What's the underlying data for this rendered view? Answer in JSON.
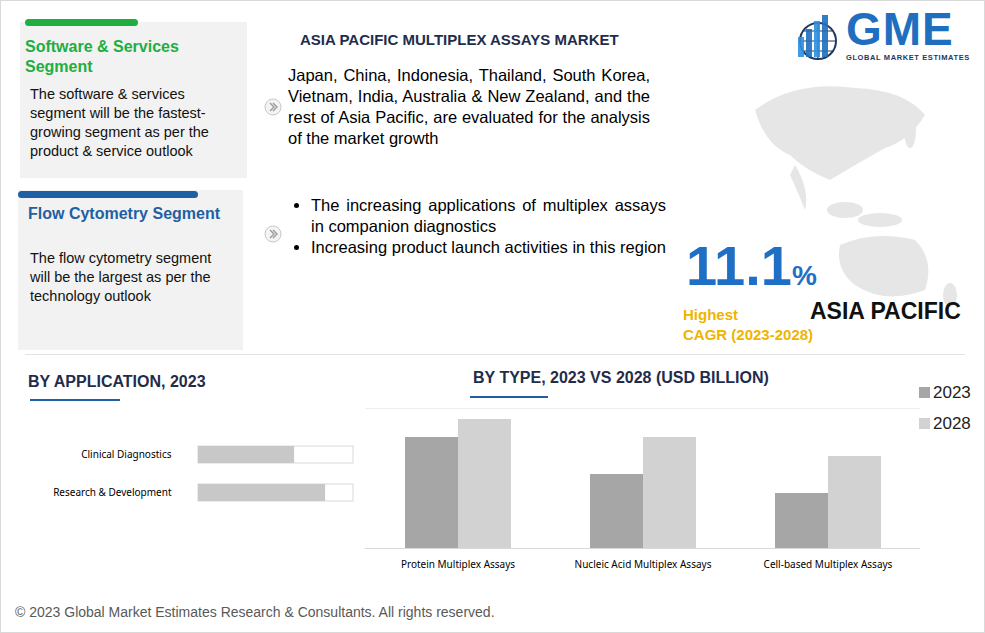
{
  "logo": {
    "text": "GME",
    "tagline": "GLOBAL MARKET ESTIMATES"
  },
  "title": "ASIA PACIFIC MULTIPLEX ASSAYS MARKET",
  "intro": "Japan, China, Indonesia, Thailand, South Korea, Vietnam, India, Australia & New Zealand, and the rest of Asia Pacific, are evaluated for the analysis of the market growth",
  "drivers": [
    "The increasing applications of multiplex assays in companion diagnostics",
    "Increasing product launch activities in this region"
  ],
  "segments": [
    {
      "title": "Software & Services Segment",
      "text": "The software & services segment will be the fastest-growing segment as per the product & service outlook",
      "color": "#1fae3f"
    },
    {
      "title": "Flow Cytometry Segment",
      "text": "The flow cytometry segment will be the largest as per the technology outlook",
      "color": "#1f5fa3"
    }
  ],
  "highlight": {
    "value": "11.1",
    "unit": "%",
    "label": "Highest",
    "sublabel": "CAGR (2023-2028)",
    "region": "ASIA PACIFIC"
  },
  "chart_data": [
    {
      "type": "bar",
      "title": "BY APPLICATION, 2023",
      "orientation": "horizontal",
      "categories": [
        "Clinical Diagnostics",
        "Research & Development"
      ],
      "values": [
        62,
        82
      ],
      "color": "#c8c8c8",
      "xlim": [
        0,
        100
      ],
      "xticks": [],
      "tick_labels": "y"
    },
    {
      "type": "bar",
      "title": "BY TYPE, 2023 VS 2028 (USD BILLION)",
      "categories": [
        "Protein Multiplex Assays",
        "Nucleic Acid Multiplex Assays",
        "Cell-based Multiplex Assays"
      ],
      "series": [
        {
          "name": "2023",
          "color": "#a6a6a6",
          "values": [
            1.11,
            0.74,
            0.55
          ]
        },
        {
          "name": "2028",
          "color": "#d2d2d2",
          "values": [
            1.29,
            1.11,
            0.92
          ]
        }
      ],
      "ylim": [
        0,
        1.4
      ],
      "yticks": [],
      "tick_labels": "x",
      "legend": "top-right"
    }
  ],
  "copyright": "© 2023 Global Market Estimates Research & Consultants. All rights reserved."
}
